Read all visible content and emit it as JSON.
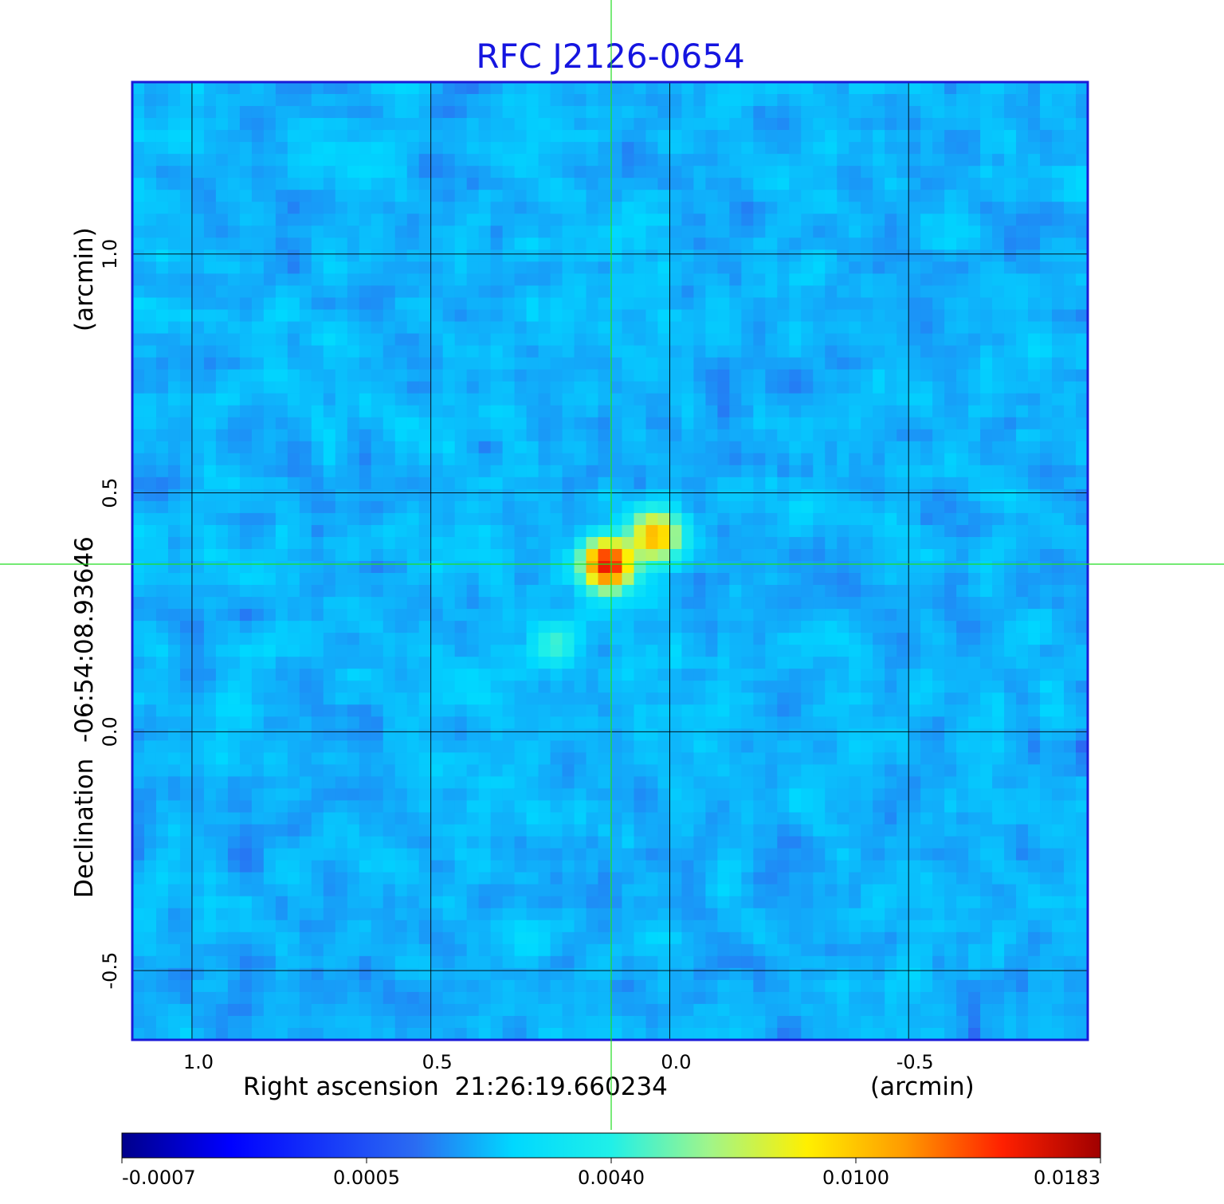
{
  "chart_data": {
    "type": "heatmap",
    "title": "RFC J2126-0654",
    "xlabel": "Right ascension  21:26:19.660234",
    "xunit": "(arcmin)",
    "ylabel": "Declination  -06:54:08.93646",
    "yunit": "(arcmin)",
    "xlim": [
      1.125,
      -0.875
    ],
    "ylim": [
      -0.645,
      1.36
    ],
    "x_ticks": [
      1.0,
      0.5,
      0.0,
      -0.5
    ],
    "x_tick_labels": [
      "1.0",
      "0.5",
      "0.0",
      "-0.5"
    ],
    "y_ticks": [
      1.0,
      0.5,
      0.0,
      -0.5
    ],
    "y_tick_labels": [
      "1.0",
      "0.5",
      "0.0",
      "-0.5"
    ],
    "grid": true,
    "crosshair": {
      "x": 0.12,
      "y": 0.35
    },
    "colormap": "jet",
    "colorbar": {
      "tick_labels": [
        "-0.0007",
        "0.0005",
        "0.0040",
        "0.0100",
        "0.0183"
      ]
    },
    "sources": [
      {
        "x": 0.03,
        "y": 0.41,
        "value": 0.011
      },
      {
        "x": 0.13,
        "y": 0.35,
        "value": 0.0183
      },
      {
        "x": 0.24,
        "y": 0.18,
        "value": 0.003
      }
    ],
    "background_value": 0.0002
  }
}
